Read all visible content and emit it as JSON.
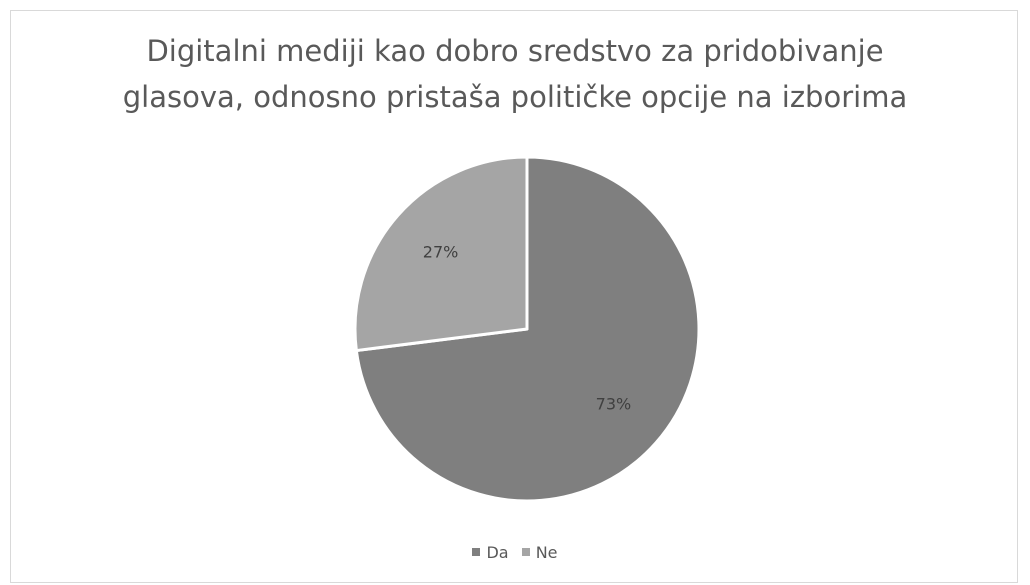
{
  "chart_data": {
    "type": "pie",
    "title_lines": [
      "Digitalni mediji kao dobro sredstvo za pridobivanje",
      "glasova, odnosno pristaša političke opcije na izborima"
    ],
    "categories": [
      "Da",
      "Ne"
    ],
    "values": [
      73,
      27
    ],
    "data_labels": [
      "73%",
      "27%"
    ],
    "colors": [
      "#7f7f7f",
      "#a5a5a5"
    ],
    "legend_position": "bottom",
    "start_angle_deg": 0,
    "direction": "clockwise"
  }
}
